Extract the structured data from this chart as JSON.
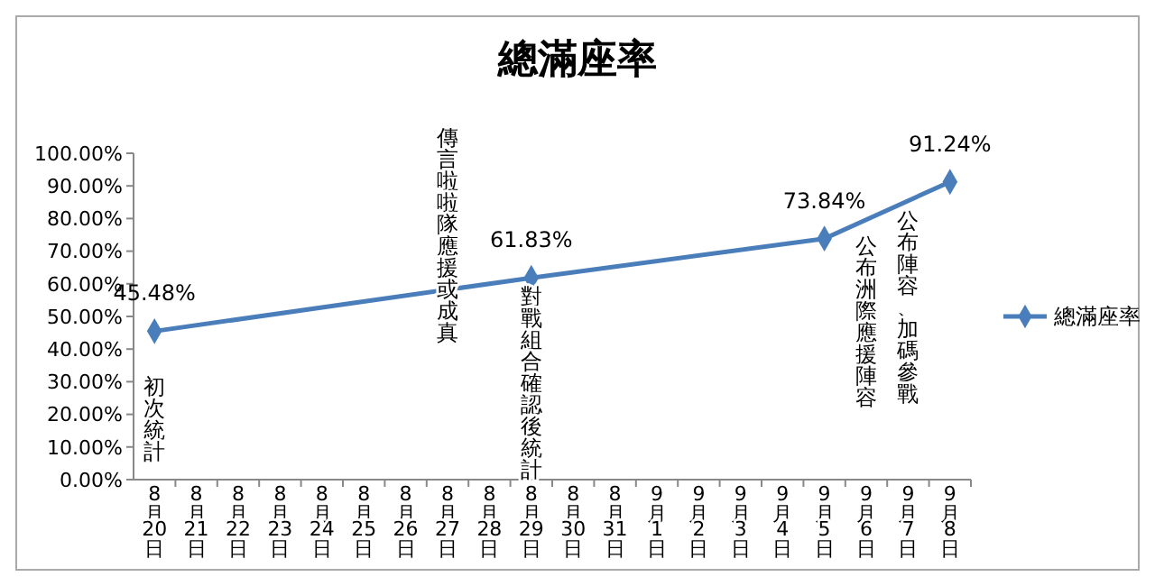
{
  "chart_data": {
    "type": "line",
    "title": "總滿座率",
    "categories": [
      "8月20日",
      "8月21日",
      "8月22日",
      "8月23日",
      "8月24日",
      "8月25日",
      "8月26日",
      "8月27日",
      "8月28日",
      "8月29日",
      "8月30日",
      "8月31日",
      "9月1日",
      "9月2日",
      "9月3日",
      "9月4日",
      "9月5日",
      "9月6日",
      "9月7日",
      "9月8日"
    ],
    "series": [
      {
        "name": "總滿座率",
        "color": "#4a7ebb",
        "values": [
          45.48,
          null,
          null,
          null,
          null,
          null,
          null,
          null,
          null,
          61.83,
          null,
          null,
          null,
          null,
          null,
          null,
          73.84,
          null,
          null,
          91.24
        ],
        "value_labels": [
          "45.48%",
          null,
          null,
          null,
          null,
          null,
          null,
          null,
          null,
          "61.83%",
          null,
          null,
          null,
          null,
          null,
          null,
          "73.84%",
          null,
          null,
          "91.24%"
        ]
      }
    ],
    "ylim": [
      0,
      100
    ],
    "yticks": [
      {
        "value": 0,
        "label": "0.00%"
      },
      {
        "value": 10,
        "label": "10.00%"
      },
      {
        "value": 20,
        "label": "20.00%"
      },
      {
        "value": 30,
        "label": "30.00%"
      },
      {
        "value": 40,
        "label": "40.00%"
      },
      {
        "value": 50,
        "label": "50.00%"
      },
      {
        "value": 60,
        "label": "60.00%"
      },
      {
        "value": 70,
        "label": "70.00%"
      },
      {
        "value": 80,
        "label": "80.00%"
      },
      {
        "value": 90,
        "label": "90.00%"
      },
      {
        "value": 100,
        "label": "100.00%"
      }
    ],
    "marker": "diamond",
    "legend": "right",
    "grid": false,
    "annotations": [
      "初次統計",
      "傳言啦啦隊應援或成真",
      "對戰組合確認後統計",
      "公布洲際應援陣容",
      "公布陣容、加碼參戰"
    ]
  }
}
